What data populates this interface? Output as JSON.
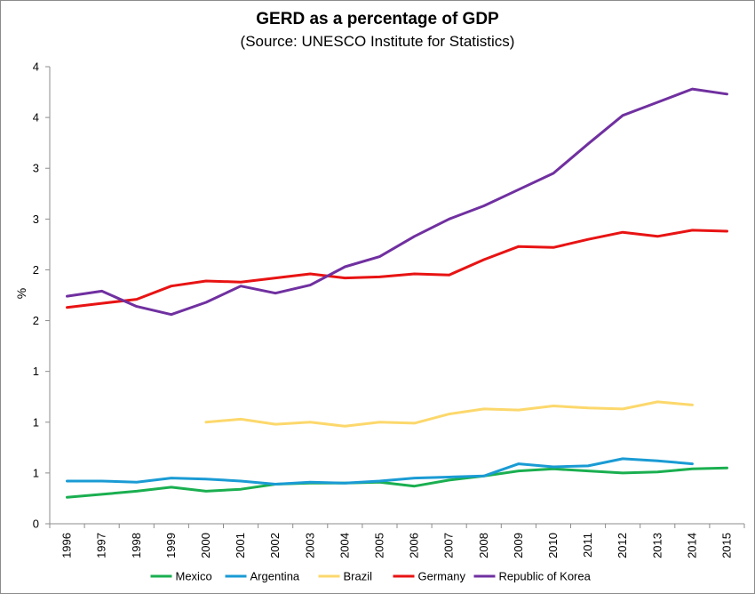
{
  "chart_data": {
    "type": "line",
    "title": "GERD as a percentage of GDP",
    "subtitle": "(Source: UNESCO Institute for Statistics)",
    "xlabel": "",
    "ylabel": "%",
    "x": [
      "1996",
      "1997",
      "1998",
      "1999",
      "2000",
      "2001",
      "2002",
      "2003",
      "2004",
      "2005",
      "2006",
      "2007",
      "2008",
      "2009",
      "2010",
      "2011",
      "2012",
      "2013",
      "2014",
      "2015"
    ],
    "ylim": [
      0,
      4.5
    ],
    "ytick_values": [
      0,
      0.5,
      1,
      1.5,
      2,
      2.5,
      3,
      3.5,
      4,
      4.5
    ],
    "ytick_labels": [
      "0",
      "1",
      "1",
      "1",
      "2",
      "2",
      "3",
      "3",
      "4",
      "4"
    ],
    "ytick_note": "tick labels are printed as shown (rounded integers)",
    "grid": false,
    "legend_position": "bottom",
    "series": [
      {
        "name": "Mexico",
        "color": "#1aaf50",
        "values": [
          0.26,
          0.29,
          0.32,
          0.36,
          0.32,
          0.34,
          0.39,
          0.4,
          0.4,
          0.41,
          0.37,
          0.43,
          0.47,
          0.52,
          0.54,
          0.52,
          0.5,
          0.51,
          0.54,
          0.55
        ]
      },
      {
        "name": "Argentina",
        "color": "#1a9bd4",
        "values": [
          0.42,
          0.42,
          0.41,
          0.45,
          0.44,
          0.42,
          0.39,
          0.41,
          0.4,
          0.42,
          0.45,
          0.46,
          0.47,
          0.59,
          0.56,
          0.57,
          0.64,
          0.62,
          0.59,
          null
        ]
      },
      {
        "name": "Brazil",
        "color": "#fcd86c",
        "values": [
          null,
          null,
          null,
          null,
          1.0,
          1.03,
          0.98,
          1.0,
          0.96,
          1.0,
          0.99,
          1.08,
          1.13,
          1.12,
          1.16,
          1.14,
          1.13,
          1.2,
          1.17,
          null
        ]
      },
      {
        "name": "Germany",
        "color": "#e81313",
        "values": [
          2.13,
          2.17,
          2.21,
          2.34,
          2.39,
          2.38,
          2.42,
          2.46,
          2.42,
          2.43,
          2.46,
          2.45,
          2.6,
          2.73,
          2.72,
          2.8,
          2.87,
          2.83,
          2.89,
          2.88
        ]
      },
      {
        "name": "Republic of Korea",
        "color": "#7030a0",
        "values": [
          2.24,
          2.29,
          2.14,
          2.06,
          2.18,
          2.34,
          2.27,
          2.35,
          2.53,
          2.63,
          2.83,
          3.0,
          3.13,
          3.29,
          3.45,
          3.74,
          4.02,
          4.15,
          4.28,
          4.23
        ]
      }
    ]
  }
}
